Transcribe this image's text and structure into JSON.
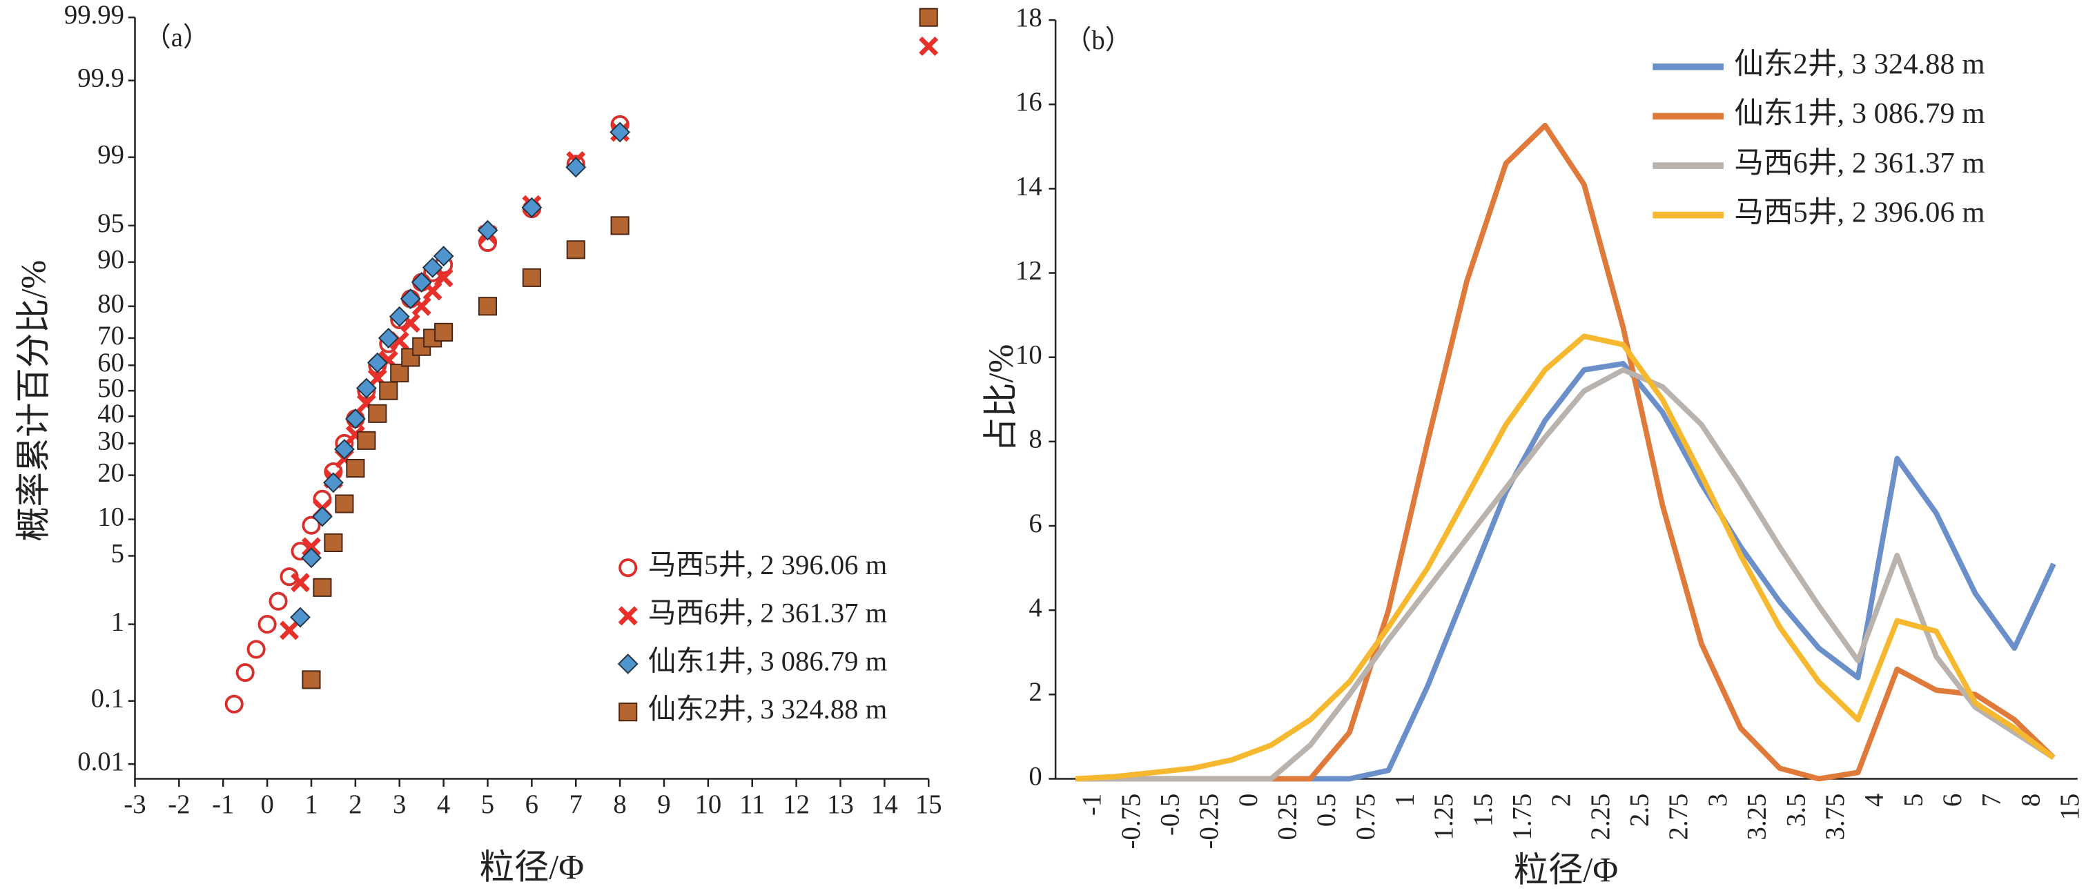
{
  "chart_data": [
    {
      "type": "scatter",
      "label": "（a）",
      "yscale": "probability",
      "xlabel": "粒径/Φ",
      "ylabel": "概率累计百分比/%",
      "xlim": [
        -3,
        15
      ],
      "xticks": [
        -3,
        -2,
        -1,
        0,
        1,
        2,
        3,
        4,
        5,
        6,
        7,
        8,
        9,
        10,
        11,
        12,
        13,
        14,
        15
      ],
      "ylim": [
        0.01,
        99.99
      ],
      "yticks": [
        0.01,
        0.1,
        1,
        5,
        10,
        20,
        30,
        40,
        50,
        60,
        70,
        80,
        90,
        95,
        99,
        99.9,
        99.99
      ],
      "legend": "lower right",
      "series": [
        {
          "name": "马西5井, 2 396.06 m",
          "marker": "circle",
          "color": "#d9302b",
          "x": [
            -0.75,
            -0.5,
            -0.25,
            0,
            0.25,
            0.5,
            0.75,
            1,
            1.25,
            1.5,
            1.75,
            2,
            2.25,
            2.5,
            2.75,
            3,
            3.25,
            3.5,
            3.75,
            4,
            5,
            6,
            7,
            8
          ],
          "values": [
            0.09,
            0.25,
            0.5,
            1,
            1.8,
            3.2,
            5.5,
            9,
            14,
            21,
            30,
            39,
            50,
            60,
            68,
            76,
            82,
            86,
            88,
            89.5,
            93,
            96.5,
            98.8,
            99.6
          ]
        },
        {
          "name": "马西6井, 2 361.37 m",
          "marker": "x",
          "color": "#e8302a",
          "x": [
            0.5,
            0.75,
            1,
            1.25,
            1.5,
            1.75,
            2,
            2.25,
            2.5,
            2.75,
            3,
            3.25,
            3.5,
            3.75,
            4,
            5,
            6,
            7,
            8,
            15
          ],
          "values": [
            0.85,
            2.8,
            6,
            12,
            19,
            25,
            33,
            45,
            55,
            62,
            69,
            75,
            80,
            84,
            87,
            94,
            96.8,
            98.9,
            99.5,
            99.97
          ]
        },
        {
          "name": "仙东1井, 3 086.79 m",
          "marker": "diamond",
          "color": "#4f94cd",
          "x": [
            0.75,
            1,
            1.25,
            1.5,
            1.75,
            2,
            2.25,
            2.5,
            2.75,
            3,
            3.25,
            3.5,
            3.75,
            4,
            5,
            6,
            7,
            8
          ],
          "values": [
            1.2,
            4.8,
            10.5,
            18,
            28,
            39,
            51,
            61,
            70,
            77,
            82,
            86,
            89,
            91,
            94.5,
            96.6,
            98.7,
            99.5
          ]
        },
        {
          "name": "仙东2井, 3 324.88 m",
          "marker": "square",
          "color": "#b5652f",
          "x": [
            1,
            1.25,
            1.5,
            1.75,
            2,
            2.25,
            2.5,
            2.75,
            3,
            3.25,
            3.5,
            3.75,
            4,
            5,
            6,
            7,
            8,
            15
          ],
          "values": [
            0.2,
            2.5,
            6.5,
            13,
            22,
            31,
            41,
            50,
            57,
            63,
            67,
            70,
            72,
            80,
            87,
            92,
            95,
            99.99
          ]
        }
      ]
    },
    {
      "type": "line",
      "label": "（b）",
      "xlabel": "粒径/Φ",
      "ylabel": "占比/%",
      "categories": [
        "-1",
        "-0.75",
        "-0.5",
        "-0.25",
        "0",
        "0.25",
        "0.5",
        "0.75",
        "1",
        "1.25",
        "1.5",
        "1.75",
        "2",
        "2.25",
        "2.5",
        "2.75",
        "3",
        "3.25",
        "3.5",
        "3.75",
        "4",
        "5",
        "6",
        "7",
        "8",
        "15"
      ],
      "ylim": [
        0,
        18
      ],
      "yticks": [
        0,
        2,
        4,
        6,
        8,
        10,
        12,
        14,
        16,
        18
      ],
      "legend": "upper right",
      "series": [
        {
          "name": "仙东2井, 3 324.88 m",
          "color": "#6a8fc9",
          "values": [
            0,
            0,
            0,
            0,
            0,
            0,
            0,
            0,
            0.2,
            2.2,
            4.5,
            6.8,
            8.5,
            9.7,
            9.85,
            8.7,
            7.0,
            5.5,
            4.2,
            3.1,
            2.4,
            7.6,
            6.3,
            4.4,
            3.1,
            5.1
          ]
        },
        {
          "name": "仙东1井, 3 086.79 m",
          "color": "#e07a3a",
          "values": [
            0,
            0,
            0,
            0,
            0,
            0,
            0,
            1.1,
            4.0,
            8.0,
            11.8,
            14.6,
            15.5,
            14.1,
            10.7,
            6.5,
            3.2,
            1.2,
            0.25,
            0,
            0.15,
            2.6,
            2.1,
            2.0,
            1.4,
            0.5
          ]
        },
        {
          "name": "马西6井, 2 361.37 m",
          "color": "#b9b2ad",
          "values": [
            0,
            0,
            0,
            0,
            0,
            0,
            0.8,
            2.0,
            3.3,
            4.5,
            5.7,
            6.9,
            8.1,
            9.2,
            9.7,
            9.3,
            8.4,
            7.0,
            5.5,
            4.1,
            2.8,
            5.3,
            2.9,
            1.7,
            1.1,
            0.5
          ]
        },
        {
          "name": "马西5井, 2 396.06 m",
          "color": "#f5b82e",
          "values": [
            0,
            0.05,
            0.15,
            0.25,
            0.45,
            0.8,
            1.4,
            2.3,
            3.6,
            5.0,
            6.7,
            8.4,
            9.7,
            10.5,
            10.3,
            9.0,
            7.2,
            5.3,
            3.6,
            2.3,
            1.4,
            3.75,
            3.5,
            1.8,
            1.2,
            0.5
          ]
        }
      ]
    }
  ]
}
